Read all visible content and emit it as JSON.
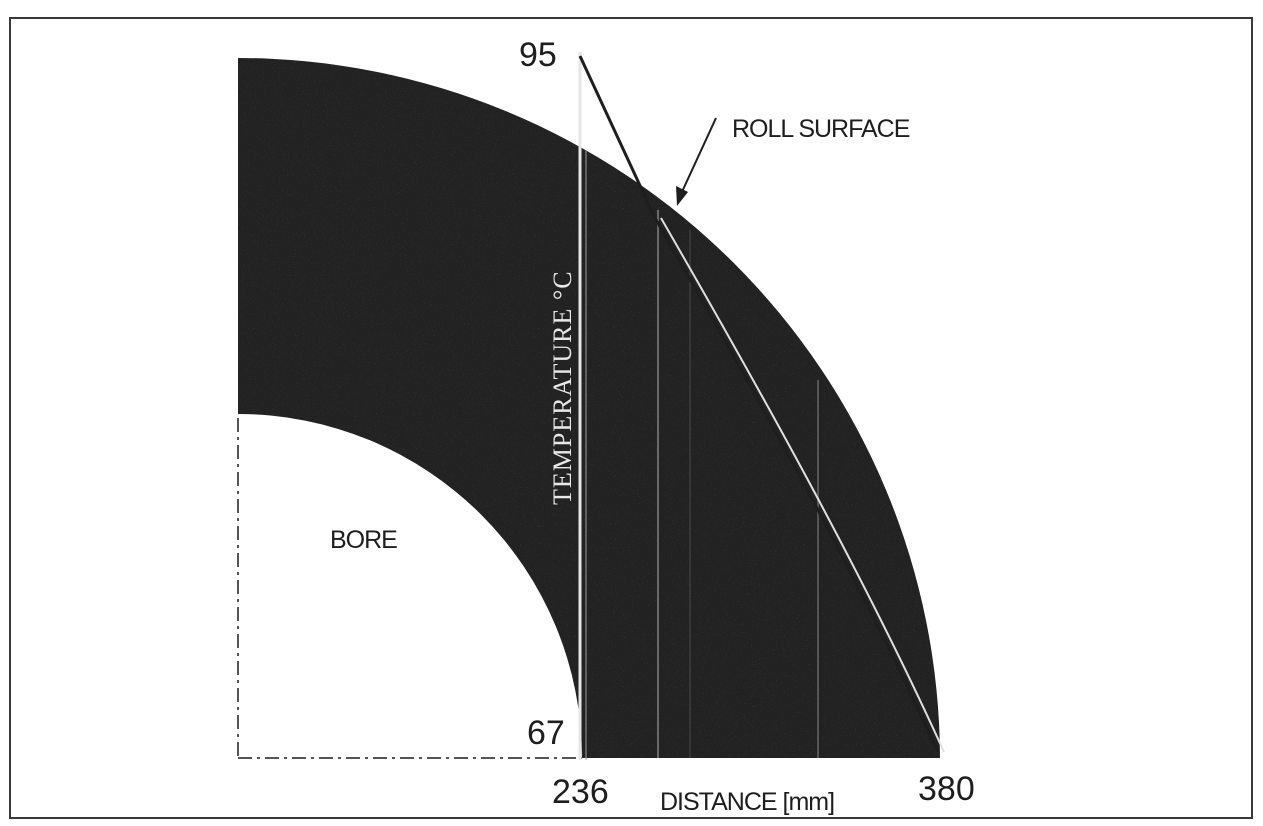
{
  "diagram": {
    "bore_label": "BORE",
    "surface_label": "ROLL SURFACE",
    "y_axis_label": "TEMPERATURE °C",
    "x_axis_label": "DISTANCE [mm]",
    "temp_max": "95",
    "temp_min": "67",
    "distance_start": "236",
    "distance_end": "380"
  }
}
